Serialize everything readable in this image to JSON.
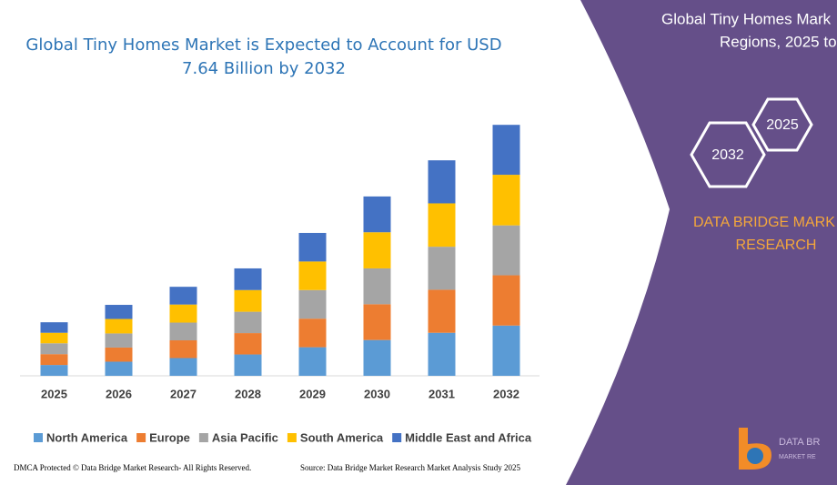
{
  "chart_data": {
    "type": "bar",
    "stacked": true,
    "title": "Global Tiny Homes Market is Expected to Account for USD 7.64 Billion by 2032",
    "categories": [
      "2025",
      "2026",
      "2027",
      "2028",
      "2029",
      "2030",
      "2031",
      "2032"
    ],
    "series": [
      {
        "name": "North America",
        "color": "#5b9bd5",
        "values": [
          0.33,
          0.43,
          0.54,
          0.65,
          0.87,
          1.09,
          1.31,
          1.53
        ]
      },
      {
        "name": "Europe",
        "color": "#ed7d31",
        "values": [
          0.33,
          0.43,
          0.54,
          0.65,
          0.87,
          1.09,
          1.31,
          1.53
        ]
      },
      {
        "name": "Asia Pacific",
        "color": "#a5a5a5",
        "values": [
          0.33,
          0.43,
          0.54,
          0.65,
          0.87,
          1.09,
          1.31,
          1.52
        ]
      },
      {
        "name": "South America",
        "color": "#ffc000",
        "values": [
          0.32,
          0.44,
          0.55,
          0.66,
          0.87,
          1.1,
          1.32,
          1.54
        ]
      },
      {
        "name": "Middle East and Africa",
        "color": "#4472c4",
        "values": [
          0.32,
          0.43,
          0.54,
          0.66,
          0.87,
          1.09,
          1.31,
          1.52
        ]
      }
    ],
    "legend": "bottom"
  },
  "panel": {
    "heading_lines": [
      "Global Tiny Homes Mark",
      "Regions, 2025 to"
    ],
    "hex_labels": [
      "2025",
      "2032"
    ],
    "brand_lines": [
      "DATA BRIDGE MARK",
      "RESEARCH"
    ],
    "logo_lines": [
      "DATA BR",
      "MARKET RE"
    ]
  },
  "footer": {
    "left": "DMCA Protected © Data Bridge Market Research- All Rights Reserved.",
    "right": "Source: Data Bridge Market Research Market Analysis Study 2025"
  }
}
